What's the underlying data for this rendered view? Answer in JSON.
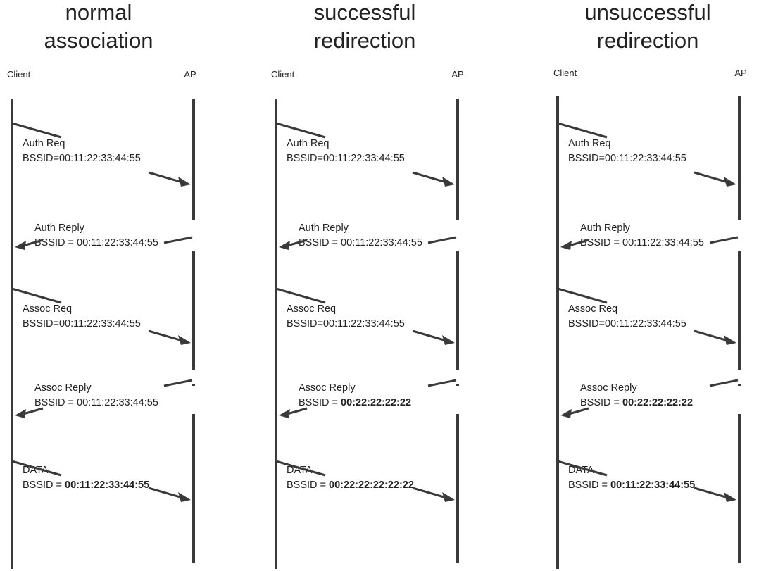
{
  "panels": [
    {
      "title_line1": "normal",
      "title_line2": "association",
      "client_label": "Client",
      "ap_label": "AP",
      "messages": [
        {
          "label": "Auth Req",
          "bssid_prefix": "BSSID=",
          "bssid_value": "00:11:22:33:44:55",
          "bold": false,
          "direction": "to-ap"
        },
        {
          "label": "Auth Reply",
          "bssid_prefix": "BSSID = ",
          "bssid_value": "00:11:22:33:44:55",
          "bold": false,
          "direction": "to-client"
        },
        {
          "label": "Assoc Req",
          "bssid_prefix": "BSSID=",
          "bssid_value": "00:11:22:33:44:55",
          "bold": false,
          "direction": "to-ap"
        },
        {
          "label": "Assoc Reply",
          "bssid_prefix": "BSSID = ",
          "bssid_value": "00:11:22:33:44:55",
          "bold": false,
          "direction": "to-client"
        },
        {
          "label": "DATA",
          "bssid_prefix": "BSSID = ",
          "bssid_value": "00:11:22:33:44:55",
          "bold": true,
          "direction": "to-ap"
        }
      ]
    },
    {
      "title_line1": "successful",
      "title_line2": "redirection",
      "client_label": "Client",
      "ap_label": "AP",
      "messages": [
        {
          "label": "Auth Req",
          "bssid_prefix": "BSSID=",
          "bssid_value": "00:11:22:33:44:55",
          "bold": false,
          "direction": "to-ap"
        },
        {
          "label": "Auth Reply",
          "bssid_prefix": "BSSID = ",
          "bssid_value": "00:11:22:33:44:55",
          "bold": false,
          "direction": "to-client"
        },
        {
          "label": "Assoc Req",
          "bssid_prefix": "BSSID=",
          "bssid_value": "00:11:22:33:44:55",
          "bold": false,
          "direction": "to-ap"
        },
        {
          "label": "Assoc Reply",
          "bssid_prefix": "BSSID = ",
          "bssid_value": "00:22:22:22:22",
          "bold": true,
          "direction": "to-client"
        },
        {
          "label": "DATA",
          "bssid_prefix": "BSSID = ",
          "bssid_value": "00:22:22:22:22:22",
          "bold": true,
          "direction": "to-ap"
        }
      ]
    },
    {
      "title_line1": "unsuccessful",
      "title_line2": "redirection",
      "client_label": "Client",
      "ap_label": "AP",
      "messages": [
        {
          "label": "Auth Req",
          "bssid_prefix": "BSSID=",
          "bssid_value": "00:11:22:33:44:55",
          "bold": false,
          "direction": "to-ap"
        },
        {
          "label": "Auth Reply",
          "bssid_prefix": "BSSID = ",
          "bssid_value": "00:11:22:33:44:55",
          "bold": false,
          "direction": "to-client"
        },
        {
          "label": "Assoc Req",
          "bssid_prefix": "BSSID=",
          "bssid_value": "00:11:22:33:44:55",
          "bold": false,
          "direction": "to-ap"
        },
        {
          "label": "Assoc Reply",
          "bssid_prefix": "BSSID = ",
          "bssid_value": "00:22:22:22:22",
          "bold": true,
          "direction": "to-client"
        },
        {
          "label": "DATA",
          "bssid_prefix": "BSSID = ",
          "bssid_value": "00:11:22:33:44:55",
          "bold": true,
          "direction": "to-ap"
        }
      ]
    }
  ]
}
